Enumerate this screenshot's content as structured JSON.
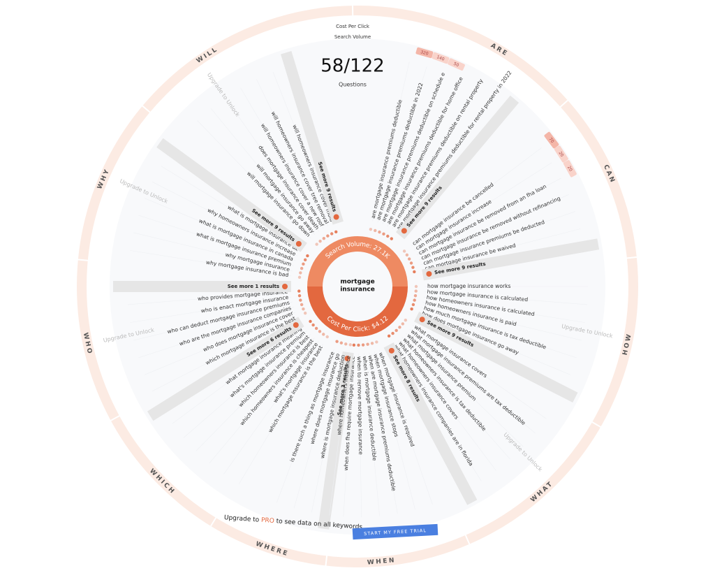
{
  "header": {
    "cost_per_click_label": "Cost Per Click",
    "search_volume_label": "Search Volume",
    "count": "58/122",
    "count_label": "Questions"
  },
  "center": {
    "keyword_lines": [
      "mortgage",
      "insurance"
    ],
    "search_volume": "Search Volume: 27.1K",
    "cost_per_click": "Cost Per Click: $4.12"
  },
  "sectors": [
    {
      "label": "ARE",
      "questions": [
        "are mortgage insurance premiums deductible",
        "are mortgage insurance premiums deductible in 2022",
        "are mortgage insurance premiums deductible on schedule e",
        "are mortgage insurance premiums deductible for home office",
        "are mortgage insurance premiums deductible on rental property",
        "are mortgage insurance premiums deductible for rental property in 2022"
      ],
      "see_more": "See more 9 results",
      "volumes": [
        "320",
        "140",
        "50"
      ]
    },
    {
      "label": "CAN",
      "questions": [
        "can mortgage insurance be cancelled",
        "can mortgage insurance increase",
        "can mortgage insurance be removed from an fha loan",
        "can mortgage insurance be removed without refinancing",
        "can mortgage insurance premiums be deducted",
        "can mortgage insurance be waived"
      ],
      "see_more": "See more 9 results",
      "volumes": [
        "70",
        "20",
        "20"
      ]
    },
    {
      "label": "HOW",
      "questions": [
        "how mortgage insurance works",
        "how mortgage insurance is calculated",
        "how homeowners insurance is calculated",
        "how homeowners insurance is paid",
        "how much mortgage insurance is tax deductible",
        "how does mortgage insurance go away"
      ],
      "see_more": "See more 9 results",
      "locked": "Upgrade to Unlock"
    },
    {
      "label": "WHAT",
      "questions": [
        "what mortgage insurance covers",
        "what mortgage insurance premiums are tax deductible",
        "what mortgage insurance premium",
        "what homeowners insurance is tax deductible",
        "what homeowners insurance covers",
        "what homeowners insurance companies are in florida"
      ],
      "see_more": "See more 8 results",
      "locked": "Upgrade to Unlock"
    },
    {
      "label": "WHEN",
      "questions": [
        "when mortgage insurance is required",
        "when mortgage insurance stops",
        "when are mortgage insurance premiums deductible",
        "when is mortgage insurance deductible",
        "when to remove mortgage insurance",
        "when does fha require mortgage insurance"
      ],
      "see_more": "See more 3 results"
    },
    {
      "label": "WHERE",
      "questions": [
        "where homeowners insurance",
        "where is mortgage insurance deduction",
        "where does mortgage insurance go",
        "is there such a thing as mortgage insurance"
      ]
    },
    {
      "label": "WHICH",
      "questions": [
        "which mortgage insurance is the best",
        "what's mortgage insurance",
        "which homeowners insurance is cheapest",
        "which homeowners insurance is best",
        "what's mortgage insurance premium",
        "what mortgage insurance meaning"
      ],
      "see_more": "See more 6 results"
    },
    {
      "label": "WHO",
      "questions": [
        "which mortgage insurance is the best",
        "who does mortgage insurance cover",
        "who are the mortgage insurance companies",
        "who can deduct mortgage insurance premiums",
        "who is enact mortgage insurance",
        "who provides mortgage insurance"
      ],
      "see_more": "See more 1 results",
      "locked": "Upgrade to Unlock"
    },
    {
      "label": "WHY",
      "questions": [
        "why mortgage insurance is bad",
        "why mortgage insurance",
        "what is mortgage insurance premium",
        "what is mortgage insurance in canada",
        "why homeowners insurance increase",
        "what is mortgage insurance uk"
      ],
      "see_more": "See more 9 results",
      "locked": "Upgrade to Unlock"
    },
    {
      "label": "WILL",
      "questions": [
        "will mortgage insurance go down",
        "will mortgage insurance go away",
        "does mortgage insurance cover death",
        "will homeowners insurance cover a new roof",
        "will homeowners insurance cover tree removal",
        "will homeowners insurance cover mold"
      ],
      "see_more": "See more 9 results",
      "locked": "Upgrade to Unlock"
    }
  ],
  "footer": {
    "prefix": "Upgrade to",
    "pro": "PRO",
    "suffix": "to see data on all keywords",
    "button": "START MY FREE TRIAL"
  }
}
